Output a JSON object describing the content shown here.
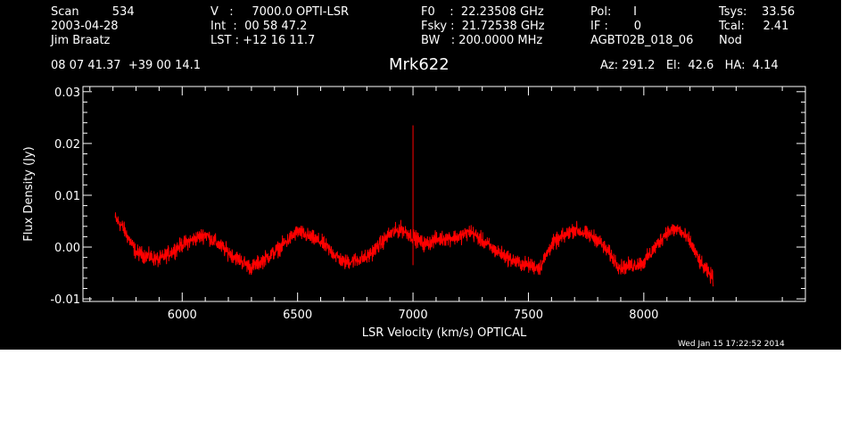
{
  "header": {
    "col1": [
      "Scan         534",
      "2003-04-28",
      "Jim Braatz"
    ],
    "col2": [
      "V   :     7000.0 OPTI-LSR",
      "Int  :  00 58 47.2",
      "LST : +12 16 11.7"
    ],
    "col3": [
      "F0    :  22.23508 GHz",
      "Fsky :  21.72538 GHz",
      "BW   : 200.0000 MHz"
    ],
    "col4": [
      "Pol:      I",
      "IF :       0",
      "AGBT02B_018_06"
    ],
    "col5": [
      "Tsys:    33.56",
      "Tcal:     2.41",
      "Nod"
    ],
    "coords": "08 07 41.37  +39 00 14.1",
    "source": "Mrk622",
    "azelha": "Az: 291.2   El:  42.6   HA:  4.14",
    "timestamp": "Wed Jan 15 17:22:52 2014"
  },
  "chart_data": {
    "type": "line",
    "title": "Mrk622",
    "xlabel": "LSR Velocity (km/s) OPTICAL",
    "ylabel": "Flux Density (Jy)",
    "xlim": [
      5570,
      8700
    ],
    "ylim": [
      -0.0105,
      0.031
    ],
    "xticks": [
      6000,
      6500,
      7000,
      7500,
      8000
    ],
    "xtick_labels": [
      "6000",
      "6500",
      "7000",
      "7500",
      "8000"
    ],
    "yticks": [
      -0.01,
      0.0,
      0.01,
      0.02,
      0.03
    ],
    "ytick_labels": [
      "-0.01",
      "0.00",
      "0.01",
      "0.02",
      "0.03"
    ],
    "series": [
      {
        "color": "#ff0000",
        "noise": 0.0022,
        "baseline_x": [
          5710,
          5740,
          5800,
          5900,
          6000,
          6100,
          6200,
          6300,
          6400,
          6500,
          6600,
          6700,
          6800,
          6900,
          6950,
          7050,
          7100,
          7200,
          7250,
          7350,
          7450,
          7550,
          7600,
          7700,
          7800,
          7900,
          8000,
          8100,
          8150,
          8200,
          8250,
          8300
        ],
        "baseline_y": [
          0.0055,
          0.004,
          -0.001,
          -0.0025,
          0.0005,
          0.0025,
          -0.001,
          -0.004,
          -0.001,
          0.003,
          0.001,
          -0.003,
          -0.002,
          0.0025,
          0.0035,
          0.0005,
          0.0015,
          0.002,
          0.003,
          -0.0005,
          -0.003,
          -0.004,
          0.0005,
          0.0035,
          0.0015,
          -0.004,
          -0.003,
          0.003,
          0.0035,
          0.001,
          -0.0035,
          -0.006
        ],
        "spikes": [
          {
            "x": 7000,
            "y": 0.0235
          },
          {
            "x": 7000,
            "y": -0.0035
          }
        ]
      }
    ]
  }
}
